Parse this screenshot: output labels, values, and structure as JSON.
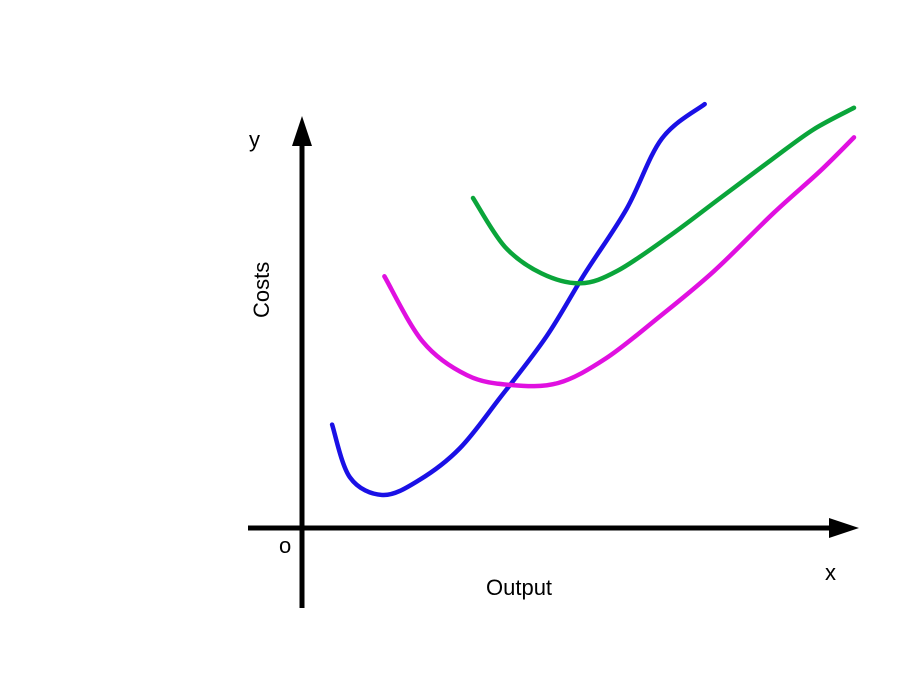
{
  "chart_data": {
    "type": "line",
    "title": "",
    "xlabel": "Output",
    "ylabel": "Costs",
    "x_axis_letter": "x",
    "y_axis_letter": "y",
    "origin_label": "o",
    "xlim": [
      0,
      100
    ],
    "ylim": [
      0,
      100
    ],
    "grid": false,
    "legend": "none",
    "series": [
      {
        "color": "#1a10e6",
        "x": [
          5.4,
          8.6,
          14.5,
          21.0,
          28.3,
          35.6,
          43.9,
          50.7,
          58.3,
          64.6,
          72.3
        ],
        "y": [
          25.1,
          12.3,
          8.0,
          11.6,
          19.3,
          31.7,
          46.5,
          61.6,
          77.5,
          94.5,
          102.9
        ]
      },
      {
        "color": "#e010e0",
        "x": [
          14.8,
          21.7,
          29.6,
          37.5,
          46.0,
          54.6,
          64.0,
          74.0,
          84.7,
          93.0,
          99.1
        ],
        "y": [
          61.1,
          45.2,
          37.1,
          34.7,
          35.2,
          41.2,
          51.1,
          62.4,
          76.5,
          86.6,
          94.8
        ]
      },
      {
        "color": "#0aa53a",
        "x": [
          30.7,
          36.4,
          43.0,
          50.0,
          56.6,
          65.8,
          75.1,
          84.4,
          91.8,
          99.1
        ],
        "y": [
          80.1,
          68.3,
          61.8,
          59.4,
          62.4,
          70.7,
          80.1,
          89.5,
          96.7,
          102.0
        ]
      }
    ]
  }
}
